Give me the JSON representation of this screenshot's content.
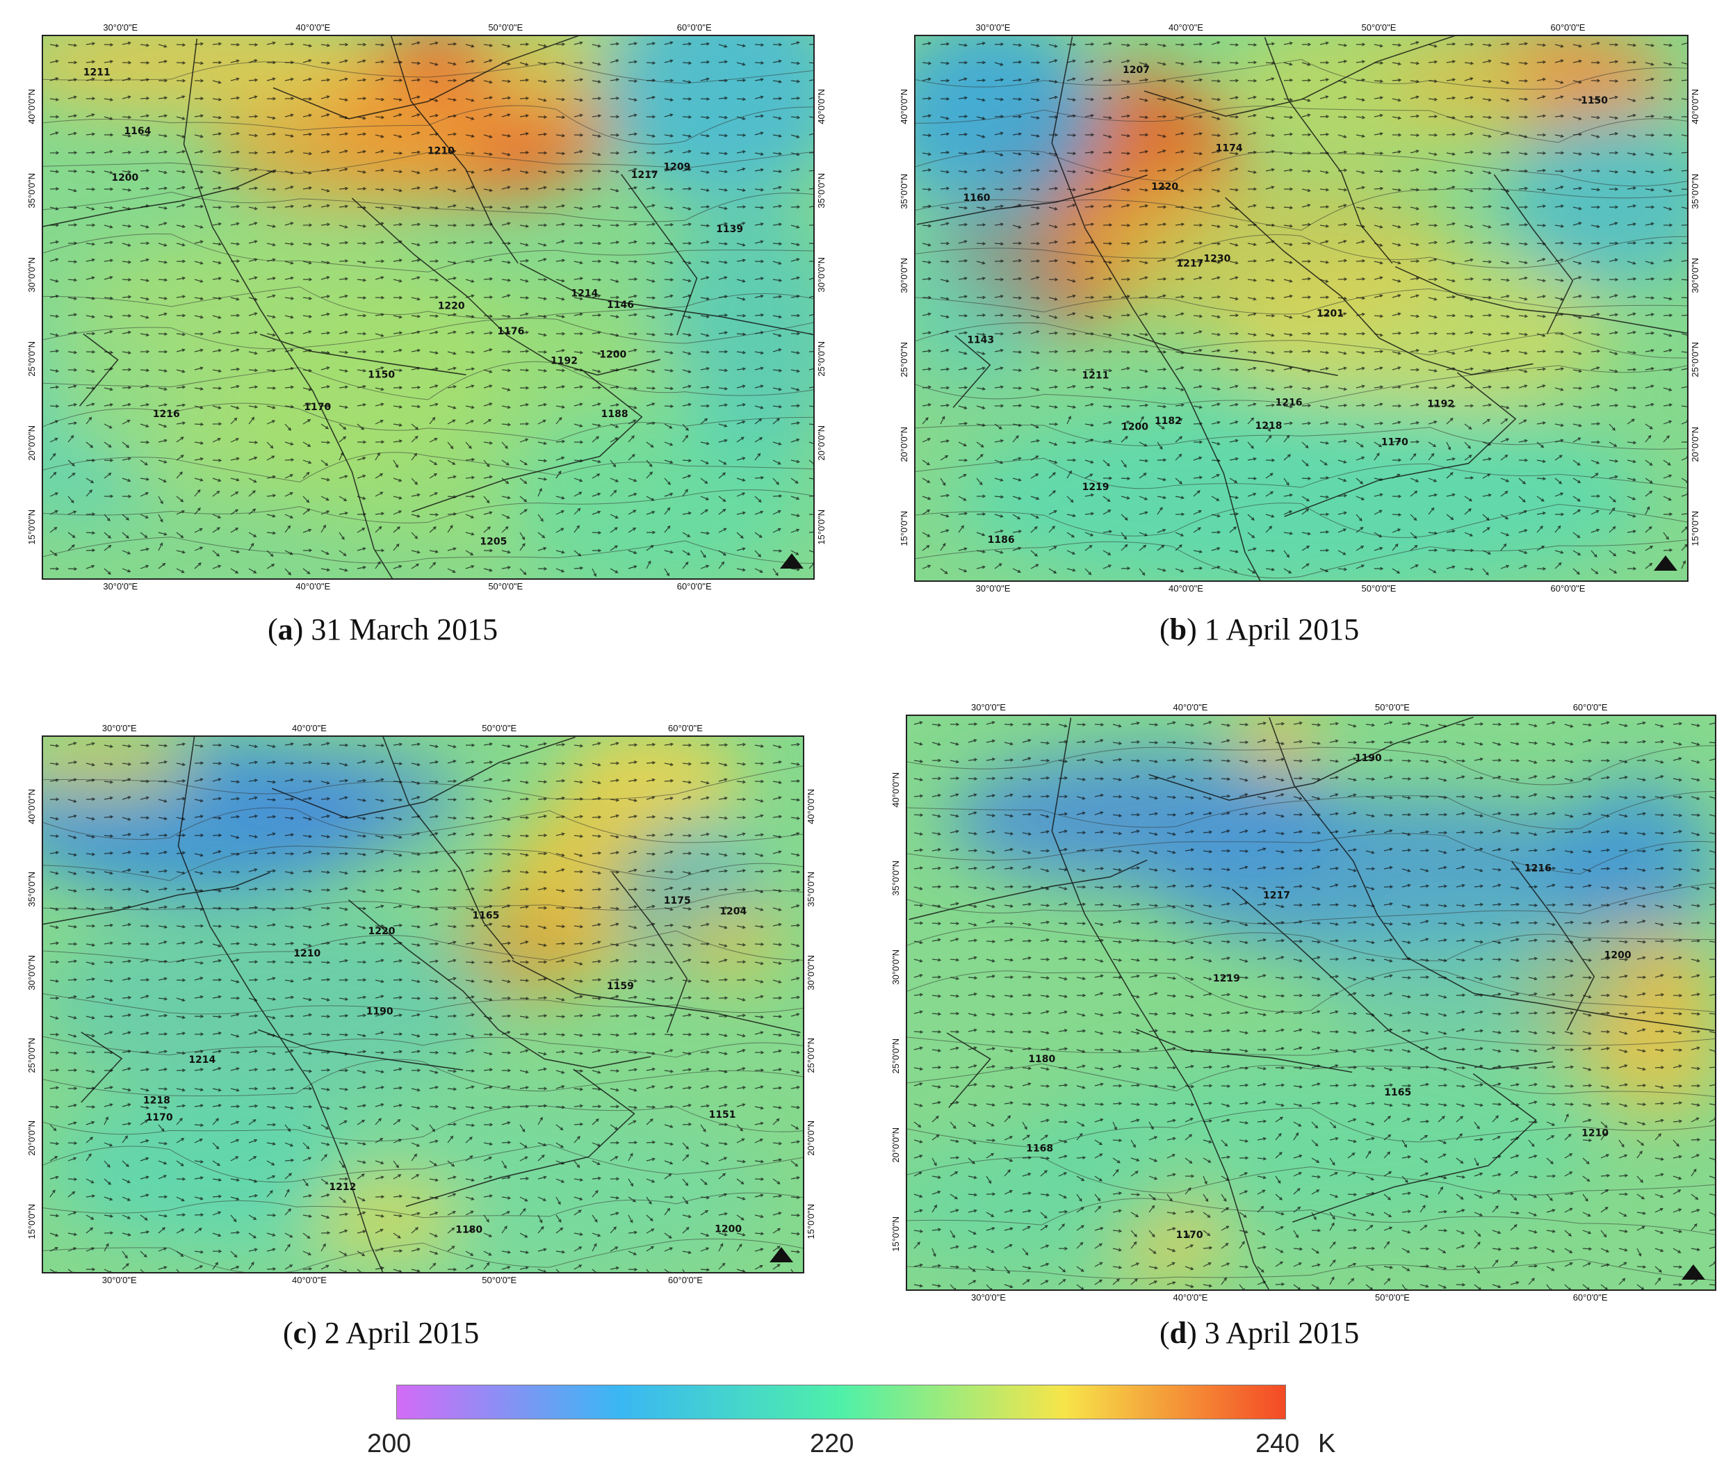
{
  "figure": {
    "panels": [
      {
        "id": "a",
        "caption_letter": "a",
        "caption_date": "31 March 2015",
        "top_longitudes": [
          "30°0'0\"E",
          "40°0'0\"E",
          "50°0'0\"E",
          "60°0'0\"E"
        ],
        "bottom_longitudes": [
          "30°0'0\"E",
          "40°0'0\"E",
          "50°0'0\"E",
          "60°0'0\"E"
        ],
        "left_latitudes": [
          "40°0'0\"N",
          "35°0'0\"N",
          "30°0'0\"N",
          "25°0'0\"N",
          "20°0'0\"N",
          "15°0'0\"N"
        ],
        "right_latitudes": [
          "40°0'0\"N",
          "35°0'0\"N",
          "30°0'0\"N",
          "25°0'0\"N",
          "20°0'0\"N",
          "15°0'0\"N"
        ],
        "contour_labels": [
          "1146",
          "1164",
          "1150",
          "1139",
          "1170",
          "1176",
          "1188",
          "1192",
          "1200",
          "1205",
          "1210",
          "1211",
          "1214",
          "1216",
          "1217",
          "1220",
          "1200",
          "1209"
        ]
      },
      {
        "id": "b",
        "caption_letter": "b",
        "caption_date": "1 April 2015",
        "top_longitudes": [
          "30°0'0\"E",
          "40°0'0\"E",
          "50°0'0\"E",
          "60°0'0\"E"
        ],
        "bottom_longitudes": [
          "30°0'0\"E",
          "40°0'0\"E",
          "50°0'0\"E",
          "60°0'0\"E"
        ],
        "left_latitudes": [
          "40°0'0\"N",
          "35°0'0\"N",
          "30°0'0\"N",
          "25°0'0\"N",
          "20°0'0\"N",
          "15°0'0\"N"
        ],
        "right_latitudes": [
          "40°0'0\"N",
          "35°0'0\"N",
          "30°0'0\"N",
          "25°0'0\"N",
          "20°0'0\"N",
          "15°0'0\"N"
        ],
        "contour_labels": [
          "1143",
          "1150",
          "1160",
          "1170",
          "1174",
          "1182",
          "1186",
          "1192",
          "1200",
          "1201",
          "1207",
          "1211",
          "1216",
          "1217",
          "1218",
          "1219",
          "1220",
          "1230"
        ]
      },
      {
        "id": "c",
        "caption_letter": "c",
        "caption_date": "2 April 2015",
        "top_longitudes": [
          "30°0'0\"E",
          "40°0'0\"E",
          "50°0'0\"E",
          "60°0'0\"E"
        ],
        "bottom_longitudes": [
          "30°0'0\"E",
          "40°0'0\"E",
          "50°0'0\"E",
          "60°0'0\"E"
        ],
        "left_latitudes": [
          "40°0'0\"N",
          "35°0'0\"N",
          "30°0'0\"N",
          "25°0'0\"N",
          "20°0'0\"N",
          "15°0'0\"N"
        ],
        "right_latitudes": [
          "40°0'0\"N",
          "35°0'0\"N",
          "30°0'0\"N",
          "25°0'0\"N",
          "20°0'0\"N",
          "15°0'0\"N"
        ],
        "contour_labels": [
          "1151",
          "1159",
          "1165",
          "1170",
          "1175",
          "1180",
          "1190",
          "1200",
          "1204",
          "1210",
          "1212",
          "1214",
          "1218",
          "1220"
        ]
      },
      {
        "id": "d",
        "caption_letter": "d",
        "caption_date": "3 April 2015",
        "top_longitudes": [
          "30°0'0\"E",
          "40°0'0\"E",
          "50°0'0\"E",
          "60°0'0\"E"
        ],
        "bottom_longitudes": [
          "30°0'0\"E",
          "40°0'0\"E",
          "50°0'0\"E",
          "60°0'0\"E"
        ],
        "left_latitudes": [
          "40°0'0\"N",
          "35°0'0\"N",
          "30°0'0\"N",
          "25°0'0\"N",
          "20°0'0\"N",
          "15°0'0\"N"
        ],
        "right_latitudes": [
          "40°0'0\"N",
          "35°0'0\"N",
          "30°0'0\"N",
          "25°0'0\"N",
          "20°0'0\"N",
          "15°0'0\"N"
        ],
        "contour_labels": [
          "1165",
          "1168",
          "1170",
          "1180",
          "1190",
          "1200",
          "1210",
          "1216",
          "1217",
          "1219"
        ]
      }
    ],
    "colorbar": {
      "min_label": "200",
      "mid_label": "220",
      "max_label": "240",
      "unit": "K",
      "colors": [
        "#d36cf6",
        "#3ab7f3",
        "#4ff0a8",
        "#f6e54a",
        "#f44a26"
      ]
    }
  }
}
